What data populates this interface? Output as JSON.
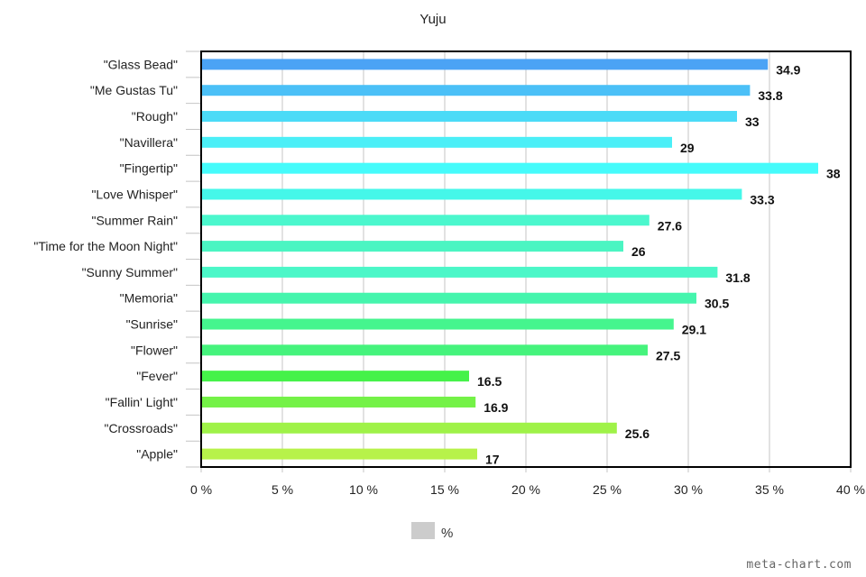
{
  "chart_data": {
    "type": "bar",
    "orientation": "horizontal",
    "title": "Yuju",
    "categories": [
      "\"Glass Bead\"",
      "\"Me Gustas Tu\"",
      "\"Rough\"",
      "\"Navillera\"",
      "\"Fingertip\"",
      "\"Love Whisper\"",
      "\"Summer Rain\"",
      "\"Time for the Moon Night\"",
      "\"Sunny Summer\"",
      "\"Memoria\"",
      "\"Sunrise\"",
      "\"Flower\"",
      "\"Fever\"",
      "\"Fallin' Light\"",
      "\"Crossroads\"",
      "\"Apple\""
    ],
    "values": [
      34.9,
      33.8,
      33,
      29,
      38,
      33.3,
      27.6,
      26,
      31.8,
      30.5,
      29.1,
      27.5,
      16.5,
      16.9,
      25.6,
      17
    ],
    "value_labels": [
      "34.9",
      "33.8",
      "33",
      "29",
      "38",
      "33.3",
      "27.6",
      "26",
      "31.8",
      "30.5",
      "29.1",
      "27.5",
      "16.5",
      "16.9",
      "25.6",
      "17"
    ],
    "colors": [
      "#4ba3f5",
      "#4bc0f7",
      "#4bdbf7",
      "#4beff7",
      "#45fbfb",
      "#45f7e9",
      "#4bf7cd",
      "#4bf5c2",
      "#4bf7c8",
      "#45f5ad",
      "#45f58e",
      "#45f37c",
      "#45f249",
      "#74f247",
      "#9ff248",
      "#b7f24a"
    ],
    "x_ticks": [
      0,
      5,
      10,
      15,
      20,
      25,
      30,
      35,
      40
    ],
    "x_tick_labels": [
      "0 %",
      "5 %",
      "10 %",
      "15 %",
      "20 %",
      "25 %",
      "30 %",
      "35 %",
      "40 %"
    ],
    "xlim": [
      0,
      40
    ],
    "grid": true,
    "legend": {
      "label": "%",
      "swatch_color": "#cccccc",
      "placement": "bottom-center"
    }
  },
  "credit": "meta-chart.com"
}
